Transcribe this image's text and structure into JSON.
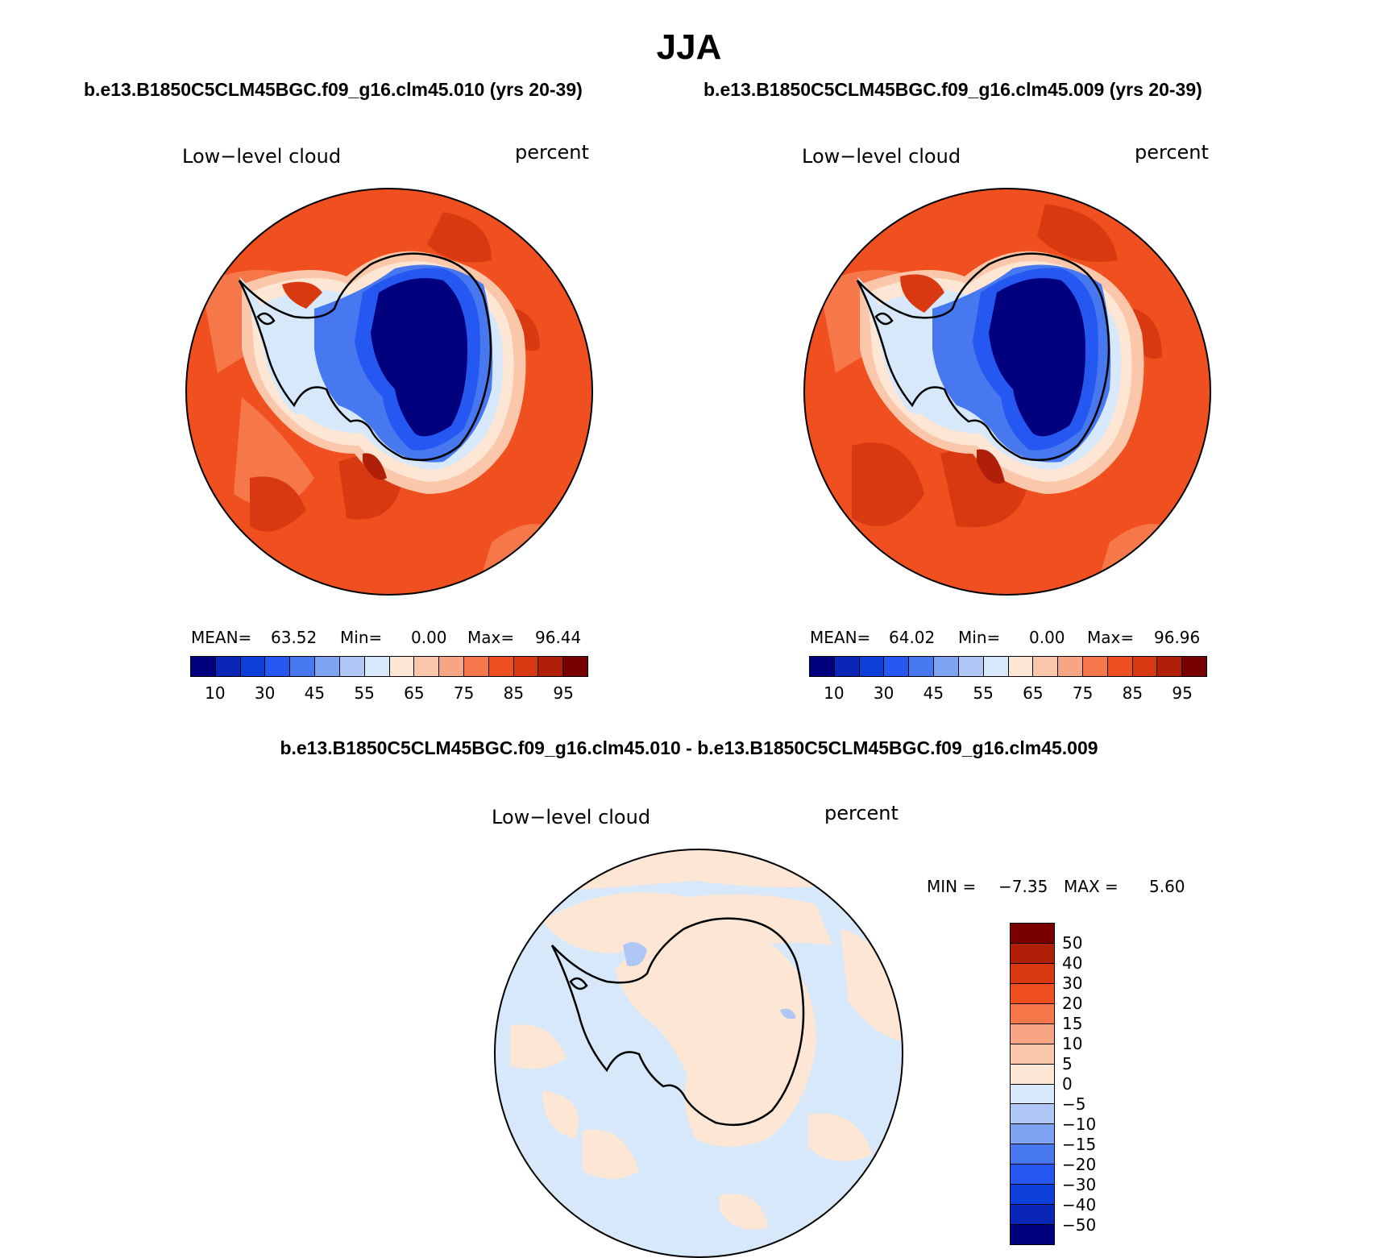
{
  "title": "JJA",
  "panels": [
    {
      "case": "b.e13.B1850C5CLM45BGC.f09_g16.clm45.010 (yrs 20-39)",
      "variable": "Low−level cloud",
      "units": "percent",
      "mean_label": "MEAN=",
      "mean": "63.52",
      "min_label": "Min=",
      "min": "0.00",
      "max_label": "Max=",
      "max": "96.44"
    },
    {
      "case": "b.e13.B1850C5CLM45BGC.f09_g16.clm45.009 (yrs 20-39)",
      "variable": "Low−level cloud",
      "units": "percent",
      "mean_label": "MEAN=",
      "mean": "64.02",
      "min_label": "Min=",
      "min": "0.00",
      "max_label": "Max=",
      "max": "96.96"
    }
  ],
  "colorbar": {
    "colors": [
      "#00007f",
      "#0a26b8",
      "#0d3fd9",
      "#2458f0",
      "#4878f0",
      "#7ea3f2",
      "#aec7f5",
      "#d6e8fa",
      "#fde6d3",
      "#fbc7aa",
      "#f7a582",
      "#f5774a",
      "#f0501f",
      "#d93910",
      "#b02008",
      "#7a0000"
    ],
    "ticks": [
      "10",
      "30",
      "45",
      "55",
      "65",
      "75",
      "85",
      "95"
    ]
  },
  "difference": {
    "title": "b.e13.B1850C5CLM45BGC.f09_g16.clm45.010 - b.e13.B1850C5CLM45BGC.f09_g16.clm45.009",
    "variable": "Low−level cloud",
    "units": "percent",
    "min_label": "MIN =",
    "min": "−7.35",
    "max_label": "MAX =",
    "max": "5.60",
    "colors": [
      "#7a0000",
      "#b02008",
      "#d93910",
      "#f0501f",
      "#f5774a",
      "#f7a582",
      "#fbc7aa",
      "#fde6d3",
      "#d6e8fa",
      "#aec7f5",
      "#7ea3f2",
      "#4878f0",
      "#2458f0",
      "#0d3fd9",
      "#0a26b8",
      "#00007f"
    ],
    "ticks": [
      "50",
      "40",
      "30",
      "20",
      "15",
      "10",
      "5",
      "0",
      "−5",
      "−10",
      "−15",
      "−20",
      "−30",
      "−40",
      "−50"
    ]
  }
}
